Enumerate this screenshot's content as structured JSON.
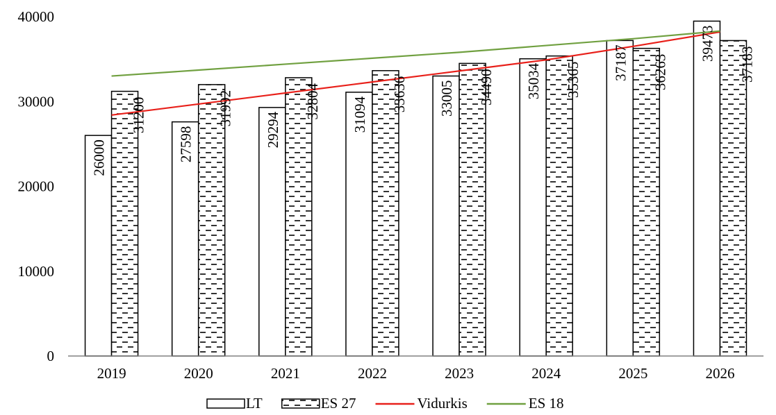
{
  "chart_data": {
    "type": "bar",
    "categories": [
      "2019",
      "2020",
      "2021",
      "2022",
      "2023",
      "2024",
      "2025",
      "2026"
    ],
    "series": [
      {
        "name": "LT",
        "kind": "bar",
        "pattern": "plain",
        "values": [
          26000,
          27598,
          29294,
          31094,
          33005,
          35034,
          37187,
          39473
        ]
      },
      {
        "name": "ES 27",
        "kind": "bar",
        "pattern": "dashed-hatch",
        "values": [
          31200,
          31992,
          32804,
          33636,
          34490,
          35365,
          36263,
          37183
        ]
      },
      {
        "name": "Vidurkis",
        "kind": "line",
        "color": "#e8201a",
        "values": [
          28400,
          29700,
          31000,
          32300,
          33600,
          34900,
          36500,
          38200
        ]
      },
      {
        "name": "ES 18",
        "kind": "line",
        "color": "#70a040",
        "values": [
          33000,
          33700,
          34400,
          35100,
          35800,
          36600,
          37400,
          38300
        ]
      }
    ],
    "data_labels": {
      "LT": [
        "26000",
        "27598",
        "29294",
        "31094",
        "33005",
        "35034",
        "37187",
        "39473"
      ],
      "ES 27": [
        "31200",
        "31992",
        "32804",
        "33636",
        "34490",
        "35365",
        "36263",
        "37183"
      ]
    },
    "y_ticks": [
      "0",
      "10000",
      "20000",
      "30000",
      "40000"
    ],
    "ylim": [
      0,
      40000
    ],
    "title": "",
    "xlabel": "",
    "ylabel": "",
    "grid": false,
    "legend_position": "bottom"
  }
}
